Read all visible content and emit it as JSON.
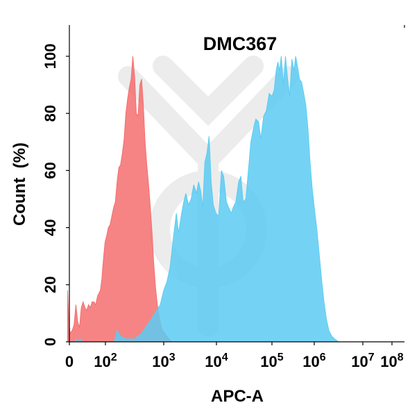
{
  "chart_data": {
    "type": "area",
    "title": "DMC367",
    "xlabel": "APC-A",
    "ylabel": "Count  (%)",
    "ylim": [
      0,
      100
    ],
    "y_ticks": [
      "0",
      "20",
      "40",
      "60",
      "80",
      "100"
    ],
    "x_ticks": [
      {
        "base": "0",
        "exp": ""
      },
      {
        "base": "10",
        "exp": "2"
      },
      {
        "base": "10",
        "exp": "3"
      },
      {
        "base": "10",
        "exp": "4"
      },
      {
        "base": "10",
        "exp": "5"
      },
      {
        "base": "10",
        "exp": "6"
      },
      {
        "base": "10",
        "exp": "7"
      },
      {
        "base": "10",
        "exp": "8"
      }
    ],
    "x_scale": "biexponential",
    "grid": false,
    "series": [
      {
        "color": "#f46e6e",
        "points": [
          [
            -0.05,
            0
          ],
          [
            -0.05,
            18
          ],
          [
            -0.02,
            8
          ],
          [
            0.02,
            3
          ],
          [
            0.08,
            4
          ],
          [
            0.13,
            6
          ],
          [
            0.18,
            13
          ],
          [
            0.23,
            7
          ],
          [
            0.28,
            5
          ],
          [
            0.33,
            12
          ],
          [
            0.38,
            14
          ],
          [
            0.43,
            12
          ],
          [
            0.48,
            11
          ],
          [
            0.53,
            13
          ],
          [
            0.58,
            12
          ],
          [
            0.63,
            14
          ],
          [
            0.68,
            14
          ],
          [
            0.73,
            13
          ],
          [
            0.78,
            16
          ],
          [
            0.82,
            17
          ],
          [
            0.86,
            18
          ],
          [
            0.9,
            22
          ],
          [
            0.93,
            27
          ],
          [
            0.96,
            31
          ],
          [
            0.99,
            35
          ],
          [
            1.02,
            37
          ],
          [
            1.05,
            40
          ],
          [
            1.08,
            41
          ],
          [
            1.11,
            44
          ],
          [
            1.14,
            47
          ],
          [
            1.17,
            49
          ],
          [
            1.2,
            56
          ],
          [
            1.23,
            61
          ],
          [
            1.26,
            62
          ],
          [
            1.29,
            66
          ],
          [
            1.32,
            71
          ],
          [
            1.35,
            80
          ],
          [
            1.38,
            85
          ],
          [
            1.41,
            89
          ],
          [
            1.44,
            92
          ],
          [
            1.47,
            100
          ],
          [
            1.5,
            93
          ],
          [
            1.53,
            80
          ],
          [
            1.56,
            79
          ],
          [
            1.59,
            90
          ],
          [
            1.62,
            92
          ],
          [
            1.65,
            83
          ],
          [
            1.68,
            70
          ],
          [
            1.71,
            62
          ],
          [
            1.74,
            55
          ],
          [
            1.77,
            47
          ],
          [
            1.8,
            38
          ],
          [
            1.83,
            27
          ],
          [
            1.86,
            19
          ],
          [
            1.89,
            13
          ],
          [
            1.92,
            9
          ],
          [
            1.95,
            6
          ],
          [
            1.98,
            4
          ],
          [
            2.02,
            3
          ],
          [
            2.06,
            2
          ],
          [
            2.1,
            1
          ],
          [
            2.15,
            0
          ]
        ]
      },
      {
        "color": "#5ccbf2",
        "points": [
          [
            0.15,
            0
          ],
          [
            0.18,
            1
          ],
          [
            0.24,
            0
          ],
          [
            0.3,
            1
          ],
          [
            0.36,
            0
          ],
          [
            1.15,
            0
          ],
          [
            1.2,
            4
          ],
          [
            1.26,
            2
          ],
          [
            1.35,
            1
          ],
          [
            1.5,
            1
          ],
          [
            1.62,
            3
          ],
          [
            1.72,
            6
          ],
          [
            1.82,
            9
          ],
          [
            1.88,
            11
          ],
          [
            1.94,
            13
          ],
          [
            2.0,
            18
          ],
          [
            2.06,
            21
          ],
          [
            2.12,
            26
          ],
          [
            2.18,
            36
          ],
          [
            2.24,
            45
          ],
          [
            2.28,
            38
          ],
          [
            2.34,
            45
          ],
          [
            2.38,
            49
          ],
          [
            2.42,
            52
          ],
          [
            2.47,
            48
          ],
          [
            2.52,
            50
          ],
          [
            2.57,
            55
          ],
          [
            2.62,
            52
          ],
          [
            2.66,
            56
          ],
          [
            2.7,
            53
          ],
          [
            2.74,
            47
          ],
          [
            2.78,
            63
          ],
          [
            2.82,
            66
          ],
          [
            2.86,
            72
          ],
          [
            2.9,
            56
          ],
          [
            2.94,
            48
          ],
          [
            2.99,
            45
          ],
          [
            3.04,
            44
          ],
          [
            3.09,
            60
          ],
          [
            3.13,
            58
          ],
          [
            3.18,
            49
          ],
          [
            3.22,
            47
          ],
          [
            3.27,
            45
          ],
          [
            3.3,
            47
          ],
          [
            3.35,
            49
          ],
          [
            3.4,
            56
          ],
          [
            3.44,
            58
          ],
          [
            3.48,
            49
          ],
          [
            3.53,
            50
          ],
          [
            3.58,
            61
          ],
          [
            3.62,
            70
          ],
          [
            3.67,
            75
          ],
          [
            3.71,
            78
          ],
          [
            3.76,
            77
          ],
          [
            3.8,
            71
          ],
          [
            3.85,
            79
          ],
          [
            3.9,
            81
          ],
          [
            3.95,
            87
          ],
          [
            4.0,
            86
          ],
          [
            4.05,
            88
          ],
          [
            4.1,
            95
          ],
          [
            4.14,
            98
          ],
          [
            4.18,
            95
          ],
          [
            4.22,
            100
          ],
          [
            4.27,
            90
          ],
          [
            4.32,
            100
          ],
          [
            4.37,
            92
          ],
          [
            4.42,
            86
          ],
          [
            4.47,
            99
          ],
          [
            4.52,
            95
          ],
          [
            4.56,
            100
          ],
          [
            4.61,
            96
          ],
          [
            4.65,
            92
          ],
          [
            4.7,
            91
          ],
          [
            4.75,
            87
          ],
          [
            4.8,
            83
          ],
          [
            4.85,
            75
          ],
          [
            4.9,
            63
          ],
          [
            4.95,
            54
          ],
          [
            5.0,
            47
          ],
          [
            5.05,
            40
          ],
          [
            5.1,
            31
          ],
          [
            5.15,
            22
          ],
          [
            5.2,
            14
          ],
          [
            5.25,
            8
          ],
          [
            5.3,
            4
          ],
          [
            5.36,
            2
          ],
          [
            5.42,
            1
          ],
          [
            5.5,
            0
          ]
        ]
      }
    ]
  }
}
